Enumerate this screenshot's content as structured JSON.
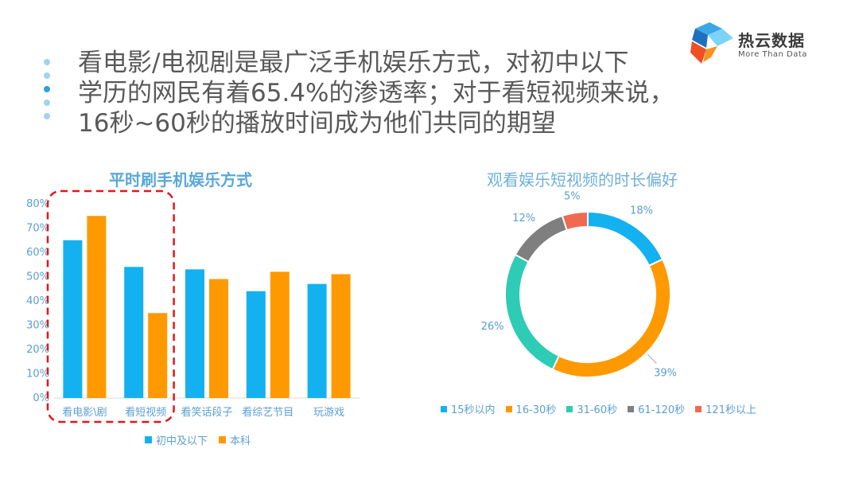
{
  "headline": {
    "line1": "看电影/电视剧是最广泛手机娱乐方式，对初中以下",
    "line2": "学历的网民有着65.4%的渗透率；对于看短视频来说，",
    "line3": "16秒~60秒的播放时间成为他们共同的期望"
  },
  "logo": {
    "name": "热云数据",
    "tagline": "More Than Data"
  },
  "colors": {
    "blue": "#14b1f0",
    "orange": "#ff9900",
    "teal": "#2ecbb5",
    "gray": "#7f7f7f",
    "red": "#f06a52",
    "axis_text": "#5b9fd0",
    "highlight": "#e1171c"
  },
  "chart_data": [
    {
      "type": "bar",
      "title": "平时刷手机娱乐方式",
      "categories": [
        "看电影\\剧",
        "看短视频",
        "看笑话段子",
        "看综艺节目",
        "玩游戏"
      ],
      "series": [
        {
          "name": "初中及以下",
          "values": [
            65,
            54,
            53,
            44,
            47
          ],
          "color": "#14b1f0"
        },
        {
          "name": "本科",
          "values": [
            75,
            35,
            49,
            52,
            51
          ],
          "color": "#ff9900"
        }
      ],
      "yticks": [
        "0%",
        "10%",
        "20%",
        "30%",
        "40%",
        "50%",
        "60%",
        "70%",
        "80%"
      ],
      "ylim": [
        0,
        80
      ],
      "ylabel": "",
      "xlabel": "",
      "legend": "bottom",
      "highlighted_categories": [
        "看电影\\剧",
        "看短视频"
      ]
    },
    {
      "type": "pie",
      "subtype": "donut",
      "title": "观看娱乐短视频的时长偏好",
      "slices": [
        {
          "label": "15秒以内",
          "value": 18,
          "display": "18%",
          "color": "#14b1f0"
        },
        {
          "label": "16-30秒",
          "value": 39,
          "display": "39%",
          "color": "#ff9900"
        },
        {
          "label": "31-60秒",
          "value": 26,
          "display": "26%",
          "color": "#2ecbb5"
        },
        {
          "label": "61-120秒",
          "value": 12,
          "display": "12%",
          "color": "#7f7f7f"
        },
        {
          "label": "121秒以上",
          "value": 5,
          "display": "5%",
          "color": "#f06a52"
        }
      ],
      "legend": "bottom"
    }
  ]
}
